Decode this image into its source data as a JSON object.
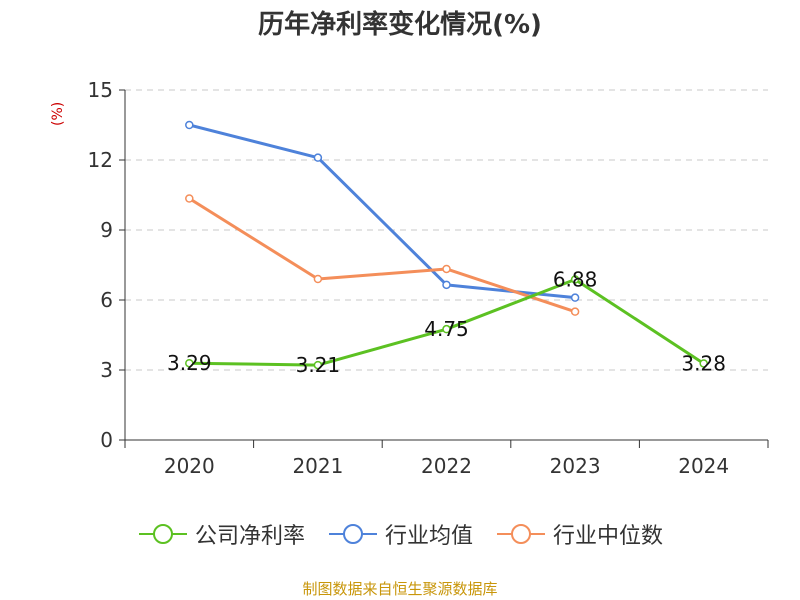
{
  "chart_data": {
    "type": "line",
    "title": "历年净利率变化情况(%)",
    "ylabel": "(%)",
    "xlabel": "",
    "categories": [
      "2020",
      "2021",
      "2022",
      "2023",
      "2024"
    ],
    "ylim": [
      0,
      15
    ],
    "yticks": [
      0,
      3,
      6,
      9,
      12,
      15
    ],
    "grid": "horizontal-dashed",
    "legend_position": "bottom",
    "series": [
      {
        "name": "公司净利率",
        "color": "#5cc122",
        "values": [
          3.29,
          3.21,
          4.75,
          6.88,
          3.28
        ],
        "labels": [
          "3.29",
          "3.21",
          "4.75",
          "6.88",
          "3.28"
        ]
      },
      {
        "name": "行业均值",
        "color": "#4e82da",
        "values": [
          13.5,
          12.1,
          6.65,
          6.1,
          null
        ]
      },
      {
        "name": "行业中位数",
        "color": "#f48e5a",
        "values": [
          10.35,
          6.9,
          7.33,
          5.5,
          null
        ]
      }
    ]
  },
  "source": "制图数据来自恒生聚源数据库"
}
